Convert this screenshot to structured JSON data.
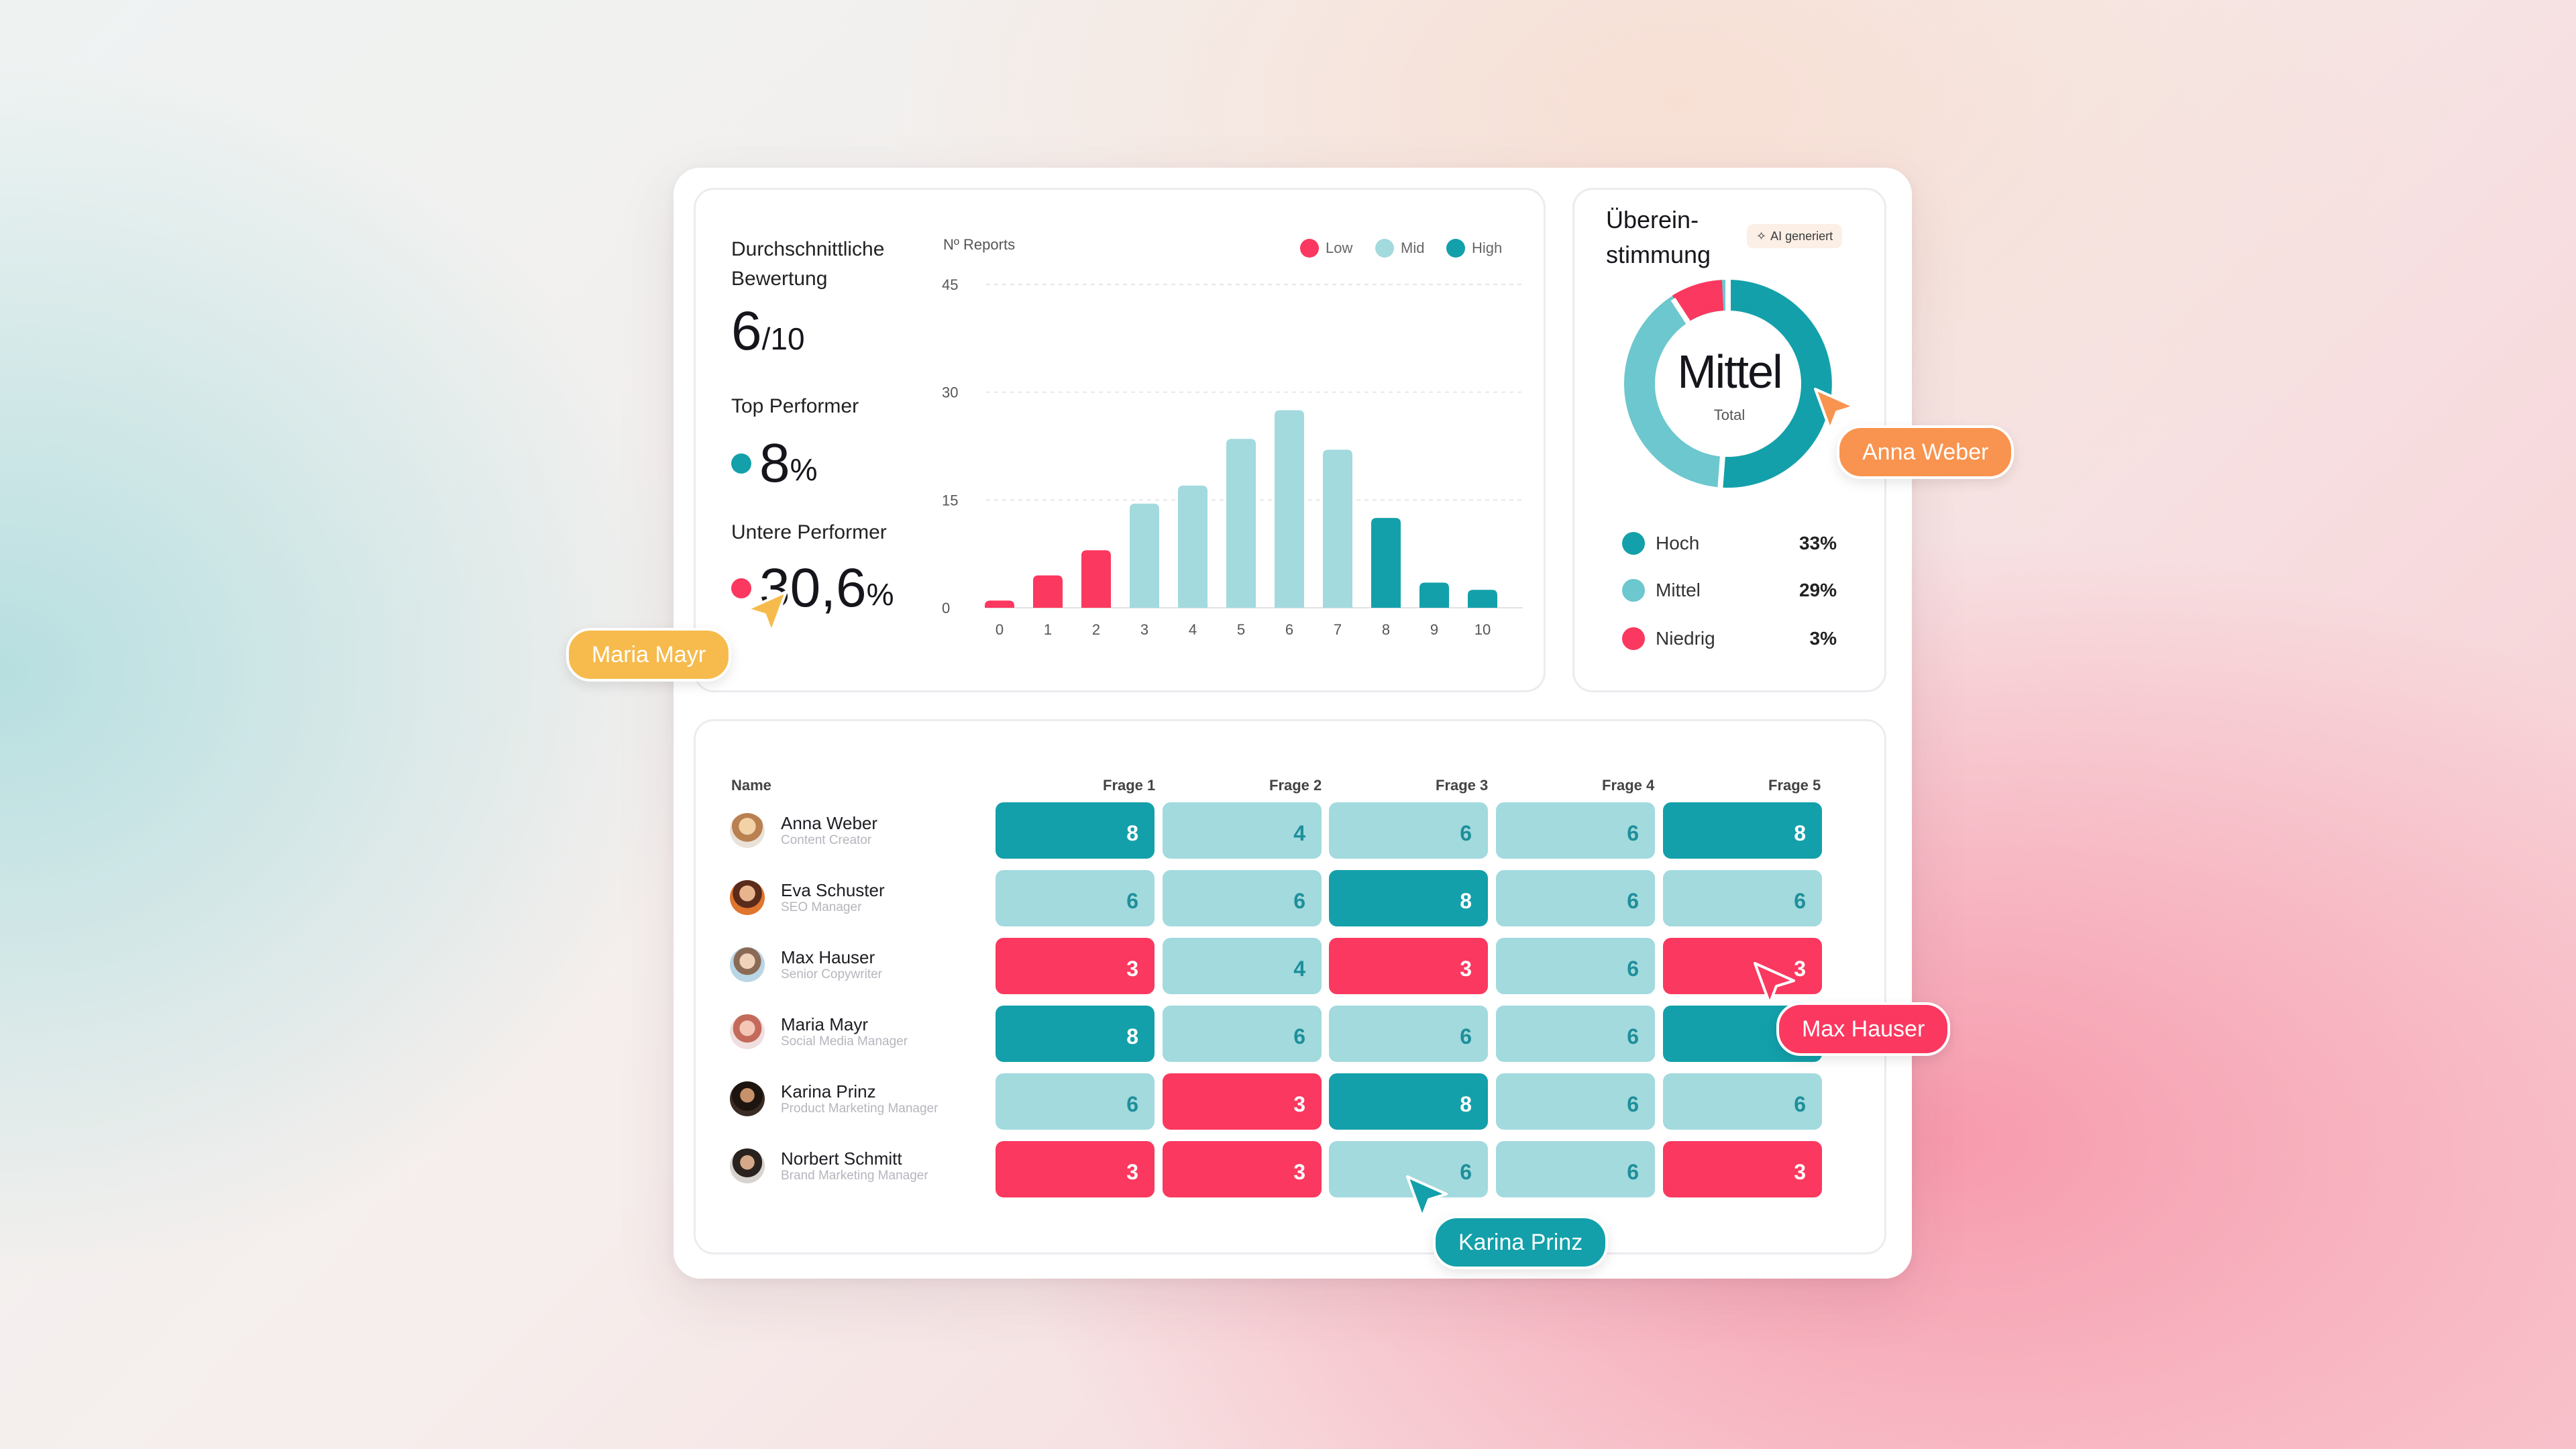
{
  "colors": {
    "low": "#fb385f",
    "mid": "#a2dade",
    "high": "#13a0aa",
    "orange": "#f8944f",
    "yellow": "#f6bb4c"
  },
  "stats": {
    "avg_label": "Durchschnittliche Bewertung",
    "avg_value": "6",
    "avg_suffix": "/10",
    "top_label": "Top Performer",
    "top_value": "8",
    "top_unit": "%",
    "bottom_label": "Untere Performer",
    "bottom_value": "30,6",
    "bottom_unit": "%"
  },
  "chart_data": {
    "type": "bar",
    "ylabel": "Nº Reports",
    "yticks": [
      0,
      15,
      30,
      45
    ],
    "ylim": [
      0,
      45
    ],
    "categories": [
      "0",
      "1",
      "2",
      "3",
      "4",
      "5",
      "6",
      "7",
      "8",
      "9",
      "10"
    ],
    "values": [
      1,
      4.5,
      8,
      14.5,
      17,
      23.5,
      27.5,
      22,
      12.5,
      3.5,
      2.5
    ],
    "groups": [
      "low",
      "low",
      "low",
      "mid",
      "mid",
      "mid",
      "mid",
      "mid",
      "high",
      "high",
      "high"
    ],
    "legend": [
      {
        "name": "Low",
        "color": "#fb385f"
      },
      {
        "name": "Mid",
        "color": "#a2dade"
      },
      {
        "name": "High",
        "color": "#13a0aa"
      }
    ],
    "grid": true,
    "legend_position": "top-right"
  },
  "agreement": {
    "title": "Überein-stimmung",
    "ai_badge": "AI generiert",
    "center_label": "Mittel",
    "center_sub": "Total",
    "segments": [
      {
        "name": "Hoch",
        "pct": "33%",
        "color": "#13a0aa"
      },
      {
        "name": "Mittel",
        "pct": "29%",
        "color": "#6cc7ce"
      },
      {
        "name": "Niedrig",
        "pct": "3%",
        "color": "#fb385f"
      }
    ]
  },
  "table": {
    "name_header": "Name",
    "columns": [
      "Frage 1",
      "Frage 2",
      "Frage 3",
      "Frage 4",
      "Frage 5"
    ],
    "rows": [
      {
        "name": "Anna Weber",
        "role": "Content Creator",
        "scores": [
          8,
          4,
          6,
          6,
          8
        ],
        "levels": [
          "hi",
          "mid",
          "mid",
          "mid",
          "hi"
        ]
      },
      {
        "name": "Eva Schuster",
        "role": "SEO Manager",
        "scores": [
          6,
          6,
          8,
          6,
          6
        ],
        "levels": [
          "mid",
          "mid",
          "hi",
          "mid",
          "mid"
        ]
      },
      {
        "name": "Max Hauser",
        "role": "Senior Copywriter",
        "scores": [
          3,
          4,
          3,
          6,
          3
        ],
        "levels": [
          "lo",
          "mid",
          "lo",
          "mid",
          "lo"
        ]
      },
      {
        "name": "Maria Mayr",
        "role": "Social Media Manager",
        "scores": [
          8,
          6,
          6,
          6,
          ""
        ],
        "levels": [
          "hi",
          "mid",
          "mid",
          "mid",
          "hi"
        ]
      },
      {
        "name": "Karina Prinz",
        "role": "Product Marketing Manager",
        "scores": [
          6,
          3,
          8,
          6,
          6
        ],
        "levels": [
          "mid",
          "lo",
          "hi",
          "mid",
          "mid"
        ]
      },
      {
        "name": "Norbert Schmitt",
        "role": "Brand Marketing Manager",
        "scores": [
          3,
          3,
          6,
          6,
          3
        ],
        "levels": [
          "lo",
          "lo",
          "mid",
          "mid",
          "lo"
        ]
      }
    ]
  },
  "cursors": {
    "anna": "Anna Weber",
    "maria": "Maria Mayr",
    "max": "Max Hauser",
    "karina": "Karina Prinz"
  }
}
